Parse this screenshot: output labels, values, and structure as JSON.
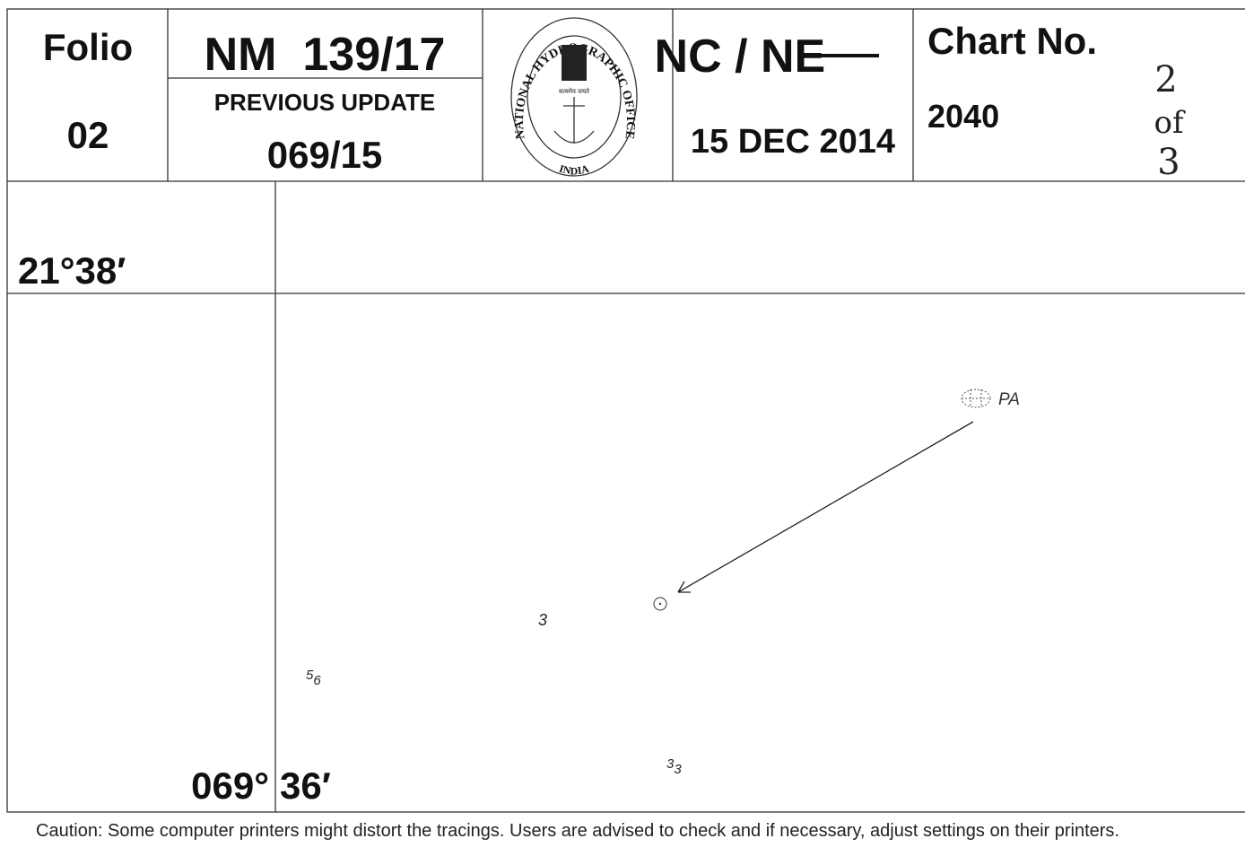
{
  "header": {
    "folio_label": "Folio",
    "folio": "02",
    "nm": "NM  139/17",
    "previous_update_label": "PREVIOUS UPDATE",
    "previous_update": "069/15",
    "logo": {
      "ring": "NATIONAL HYDROGRAPHIC OFFICE",
      "country": "INDIA",
      "motto": "सत्यमेव जयते"
    },
    "nc": "NC / ",
    "ne": "NE",
    "date": "15 DEC 2014",
    "chart_label": "Chart No.",
    "chart_no": "2040",
    "sheet": {
      "number": "2",
      "of": "of",
      "total": "3"
    }
  },
  "tracing": {
    "latitude": "21°38′",
    "longitude_deg": "069°",
    "longitude_min": "36′",
    "pa_label": "PA",
    "soundings": [
      {
        "main": "3",
        "sub": ""
      },
      {
        "main": "5",
        "sub": "6"
      },
      {
        "main": "3",
        "sub": "3"
      }
    ]
  },
  "footer": {
    "caution": "Caution: Some computer printers might distort the tracings. Users are advised to check and if necessary, adjust settings on their printers."
  }
}
